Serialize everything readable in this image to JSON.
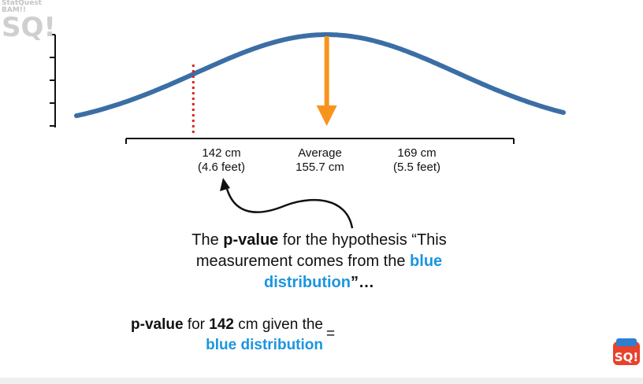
{
  "logo_top_left": {
    "line1": "StatQuest",
    "line2": "BAM!!",
    "mark": "SQ!"
  },
  "logo_bottom_right": {
    "mark": "SQ!"
  },
  "x_labels": [
    {
      "line1": "142 cm",
      "line2": "(4.6 feet)"
    },
    {
      "line1": "Average",
      "line2": "155.7 cm"
    },
    {
      "line1": "169 cm",
      "line2": "(5.5 feet)"
    }
  ],
  "caption": {
    "part1": "The ",
    "pvalue": "p-value",
    "part2": " for the hypothesis “This measurement comes from the ",
    "blue": "blue distribution",
    "part3": "”…"
  },
  "formula": {
    "pvalue": "p-value",
    "for": " for ",
    "value": "142",
    "given": " cm given the ",
    "blue": "blue distribution",
    "equals": "="
  },
  "chart_data": {
    "type": "line",
    "series": [
      {
        "distribution": "normal",
        "mean": 155.7,
        "sd": 13.3
      }
    ],
    "xlim": [
      130,
      180
    ],
    "markers": [
      {
        "kind": "dotted-line",
        "x": 142,
        "color": "#d62728"
      },
      {
        "kind": "arrow-down",
        "x": 155.7,
        "color": "#f7941d"
      }
    ],
    "colors": {
      "curve": "#3b6ea5",
      "mean_arrow": "#f7941d",
      "threshold": "#d62728",
      "accent_text": "#1b95e0"
    }
  }
}
